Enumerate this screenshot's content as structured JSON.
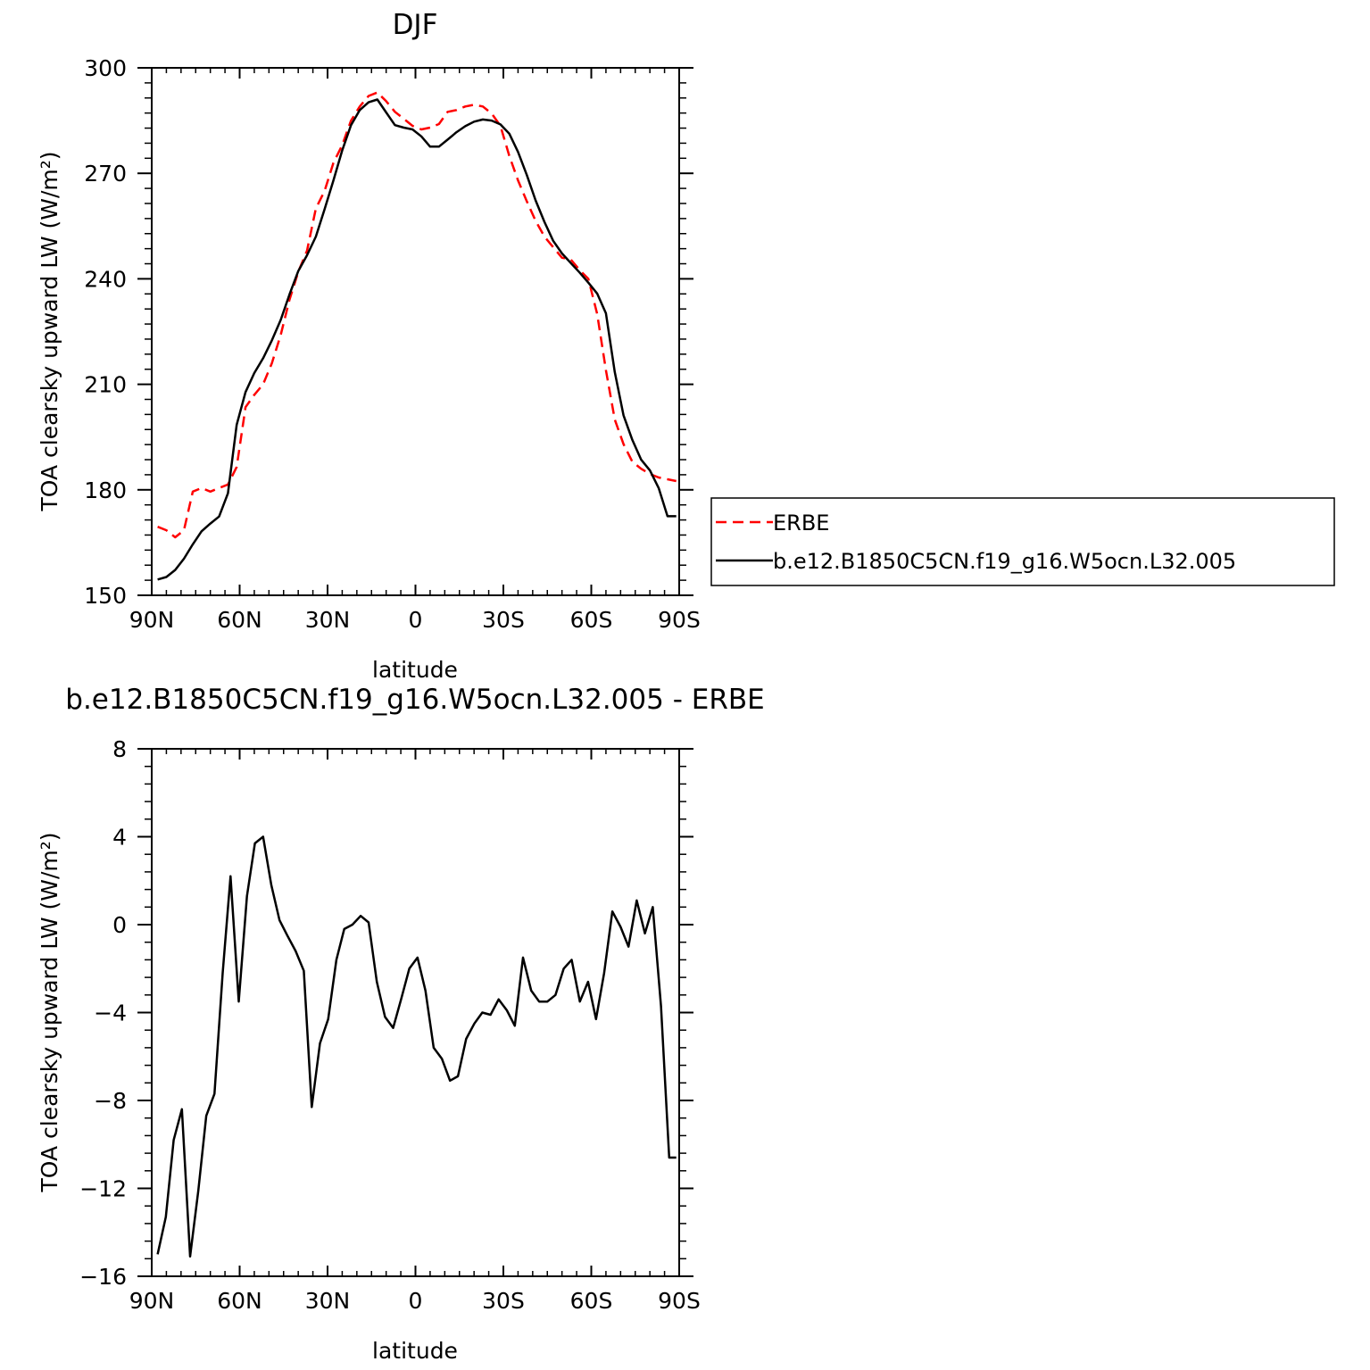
{
  "colors": {
    "erbe": "#ff0000",
    "model": "#000000",
    "axis": "#000000",
    "background": "#ffffff"
  },
  "legend": {
    "placement": "right of top panel",
    "entries": [
      {
        "label": "ERBE",
        "color": "#ff0000",
        "style": "dashed"
      },
      {
        "label": "b.e12.B1850C5CN.f19_g16.W5ocn.L32.005",
        "color": "#000000",
        "style": "solid"
      }
    ]
  },
  "chart_data": [
    {
      "type": "line",
      "title": "DJF",
      "xlabel": "latitude",
      "ylabel": "TOA clearsky upward LW (W/m²)",
      "xlim": [
        90,
        -90
      ],
      "ylim": [
        150,
        300
      ],
      "x_ticks": [
        90,
        60,
        30,
        0,
        -30,
        -60,
        -90
      ],
      "x_tick_labels": [
        "90N",
        "60N",
        "30N",
        "0",
        "30S",
        "60S",
        "90S"
      ],
      "y_ticks": [
        150,
        180,
        210,
        240,
        270,
        300
      ],
      "grid": false,
      "series": [
        {
          "name": "ERBE",
          "style": "dashed",
          "color": "#ff0000",
          "x": [
            88,
            85,
            82,
            79,
            76,
            73,
            70,
            67,
            64,
            61,
            58,
            55,
            52,
            49,
            46,
            43,
            40,
            37,
            34,
            31,
            28,
            25,
            22,
            19,
            16,
            13,
            10,
            7,
            4,
            1,
            -2,
            -5,
            -8,
            -11,
            -14,
            -17,
            -20,
            -23,
            -26,
            -29,
            -32,
            -35,
            -38,
            -41,
            -44,
            -47,
            -50,
            -53,
            -56,
            -59,
            -62,
            -65,
            -68,
            -71,
            -74,
            -77,
            -80,
            -83,
            -86,
            -89
          ],
          "y": [
            169.5,
            168.5,
            166.5,
            168.5,
            179.5,
            180.5,
            179.5,
            180.5,
            181.5,
            186.5,
            203.5,
            207,
            210,
            216,
            224,
            234,
            242,
            248,
            260,
            265,
            273,
            278,
            285,
            289,
            292,
            293,
            290.5,
            287.5,
            285.5,
            283.5,
            282.5,
            283,
            284,
            287.5,
            288,
            289,
            289.5,
            289,
            287,
            283.5,
            275,
            268,
            262,
            256.5,
            252,
            249,
            246,
            245.5,
            242.5,
            240,
            230,
            214,
            200,
            193,
            188,
            186,
            184.5,
            183.5,
            183,
            182.5
          ]
        },
        {
          "name": "b.e12.B1850C5CN.f19_g16.W5ocn.L32.005",
          "style": "solid",
          "color": "#000000",
          "x": [
            88,
            85,
            82,
            79,
            76,
            73,
            70,
            67,
            64,
            61,
            58,
            55,
            52,
            49,
            46,
            43,
            40,
            37,
            34,
            31,
            28,
            25,
            22,
            19,
            16,
            13,
            10,
            7,
            4,
            1,
            -2,
            -5,
            -8,
            -11,
            -14,
            -17,
            -20,
            -23,
            -26,
            -29,
            -32,
            -35,
            -38,
            -41,
            -44,
            -47,
            -50,
            -53,
            -56,
            -59,
            -62,
            -65,
            -68,
            -71,
            -74,
            -77,
            -80,
            -83,
            -86,
            -89
          ],
          "y": [
            154.5,
            155.2,
            157.2,
            160.4,
            164.5,
            168.2,
            170.4,
            172.4,
            179,
            198.5,
            207.8,
            213.2,
            217.4,
            222.5,
            228.3,
            235.5,
            242.2,
            246.7,
            252,
            259.8,
            268,
            276.5,
            283.7,
            288,
            290.2,
            291,
            287.3,
            283.7,
            283,
            282.5,
            280.5,
            277.6,
            277.6,
            279.6,
            281.7,
            283.4,
            284.7,
            285.3,
            285,
            283.9,
            281.3,
            276.1,
            269.5,
            262.3,
            256.2,
            250.8,
            247.2,
            244.5,
            241.8,
            238.9,
            235.8,
            230.2,
            213.5,
            201.2,
            194.2,
            188.6,
            185.5,
            180.5,
            172.5,
            172.5
          ]
        }
      ]
    },
    {
      "type": "line",
      "title": "b.e12.B1850C5CN.f19_g16.W5ocn.L32.005 - ERBE",
      "xlabel": "latitude",
      "ylabel": "TOA clearsky upward LW (W/m²)",
      "xlim": [
        90,
        -90
      ],
      "ylim": [
        -16,
        8
      ],
      "x_ticks": [
        90,
        60,
        30,
        0,
        -30,
        -60,
        -90
      ],
      "x_tick_labels": [
        "90N",
        "60N",
        "30N",
        "0",
        "30S",
        "60S",
        "90S"
      ],
      "y_ticks": [
        -16,
        -12,
        -8,
        -4,
        0,
        4,
        8
      ],
      "y_tick_labels": [
        "−16",
        "−12",
        "−8",
        "−4",
        "0",
        "4",
        "8"
      ],
      "grid": false,
      "series": [
        {
          "color": "#000000",
          "style": "solid",
          "x": [
            88,
            85.2,
            82.5,
            79.7,
            76.9,
            74.1,
            71.4,
            68.6,
            65.8,
            63.1,
            60.3,
            57.5,
            54.8,
            52,
            49.2,
            46.4,
            43.7,
            40.9,
            38.1,
            35.4,
            32.6,
            29.8,
            27,
            24.3,
            21.5,
            18.7,
            16,
            13.2,
            10.4,
            7.6,
            4.9,
            2.1,
            -0.7,
            -3.4,
            -6.2,
            -9,
            -11.8,
            -14.5,
            -17.3,
            -20.1,
            -22.8,
            -25.6,
            -28.4,
            -31.2,
            -33.9,
            -36.7,
            -39.5,
            -42.2,
            -45,
            -47.8,
            -50.6,
            -53.3,
            -56.1,
            -58.9,
            -61.6,
            -64.4,
            -67.2,
            -70,
            -72.7,
            -75.5,
            -78.3,
            -81,
            -83.8,
            -86.6,
            -89
          ],
          "y": [
            -15,
            -13.3,
            -9.8,
            -8.4,
            -15.1,
            -12.1,
            -8.7,
            -7.7,
            -2.2,
            2.2,
            -3.5,
            1.3,
            3.7,
            4,
            1.8,
            0.2,
            -0.5,
            -1.2,
            -2.1,
            -8.3,
            -5.4,
            -4.3,
            -1.6,
            -0.2,
            0,
            0.4,
            0.1,
            -2.6,
            -4.2,
            -4.7,
            -3.4,
            -2,
            -1.5,
            -3,
            -5.6,
            -6.1,
            -7.1,
            -6.9,
            -5.2,
            -4.5,
            -4,
            -4.1,
            -3.4,
            -3.9,
            -4.6,
            -1.5,
            -3,
            -3.5,
            -3.5,
            -3.2,
            -2,
            -1.6,
            -3.5,
            -2.6,
            -4.3,
            -2.2,
            0.6,
            -0.1,
            -1,
            1.1,
            -0.4,
            0.8,
            -3.7,
            -10.6,
            -10.6
          ]
        }
      ]
    }
  ]
}
